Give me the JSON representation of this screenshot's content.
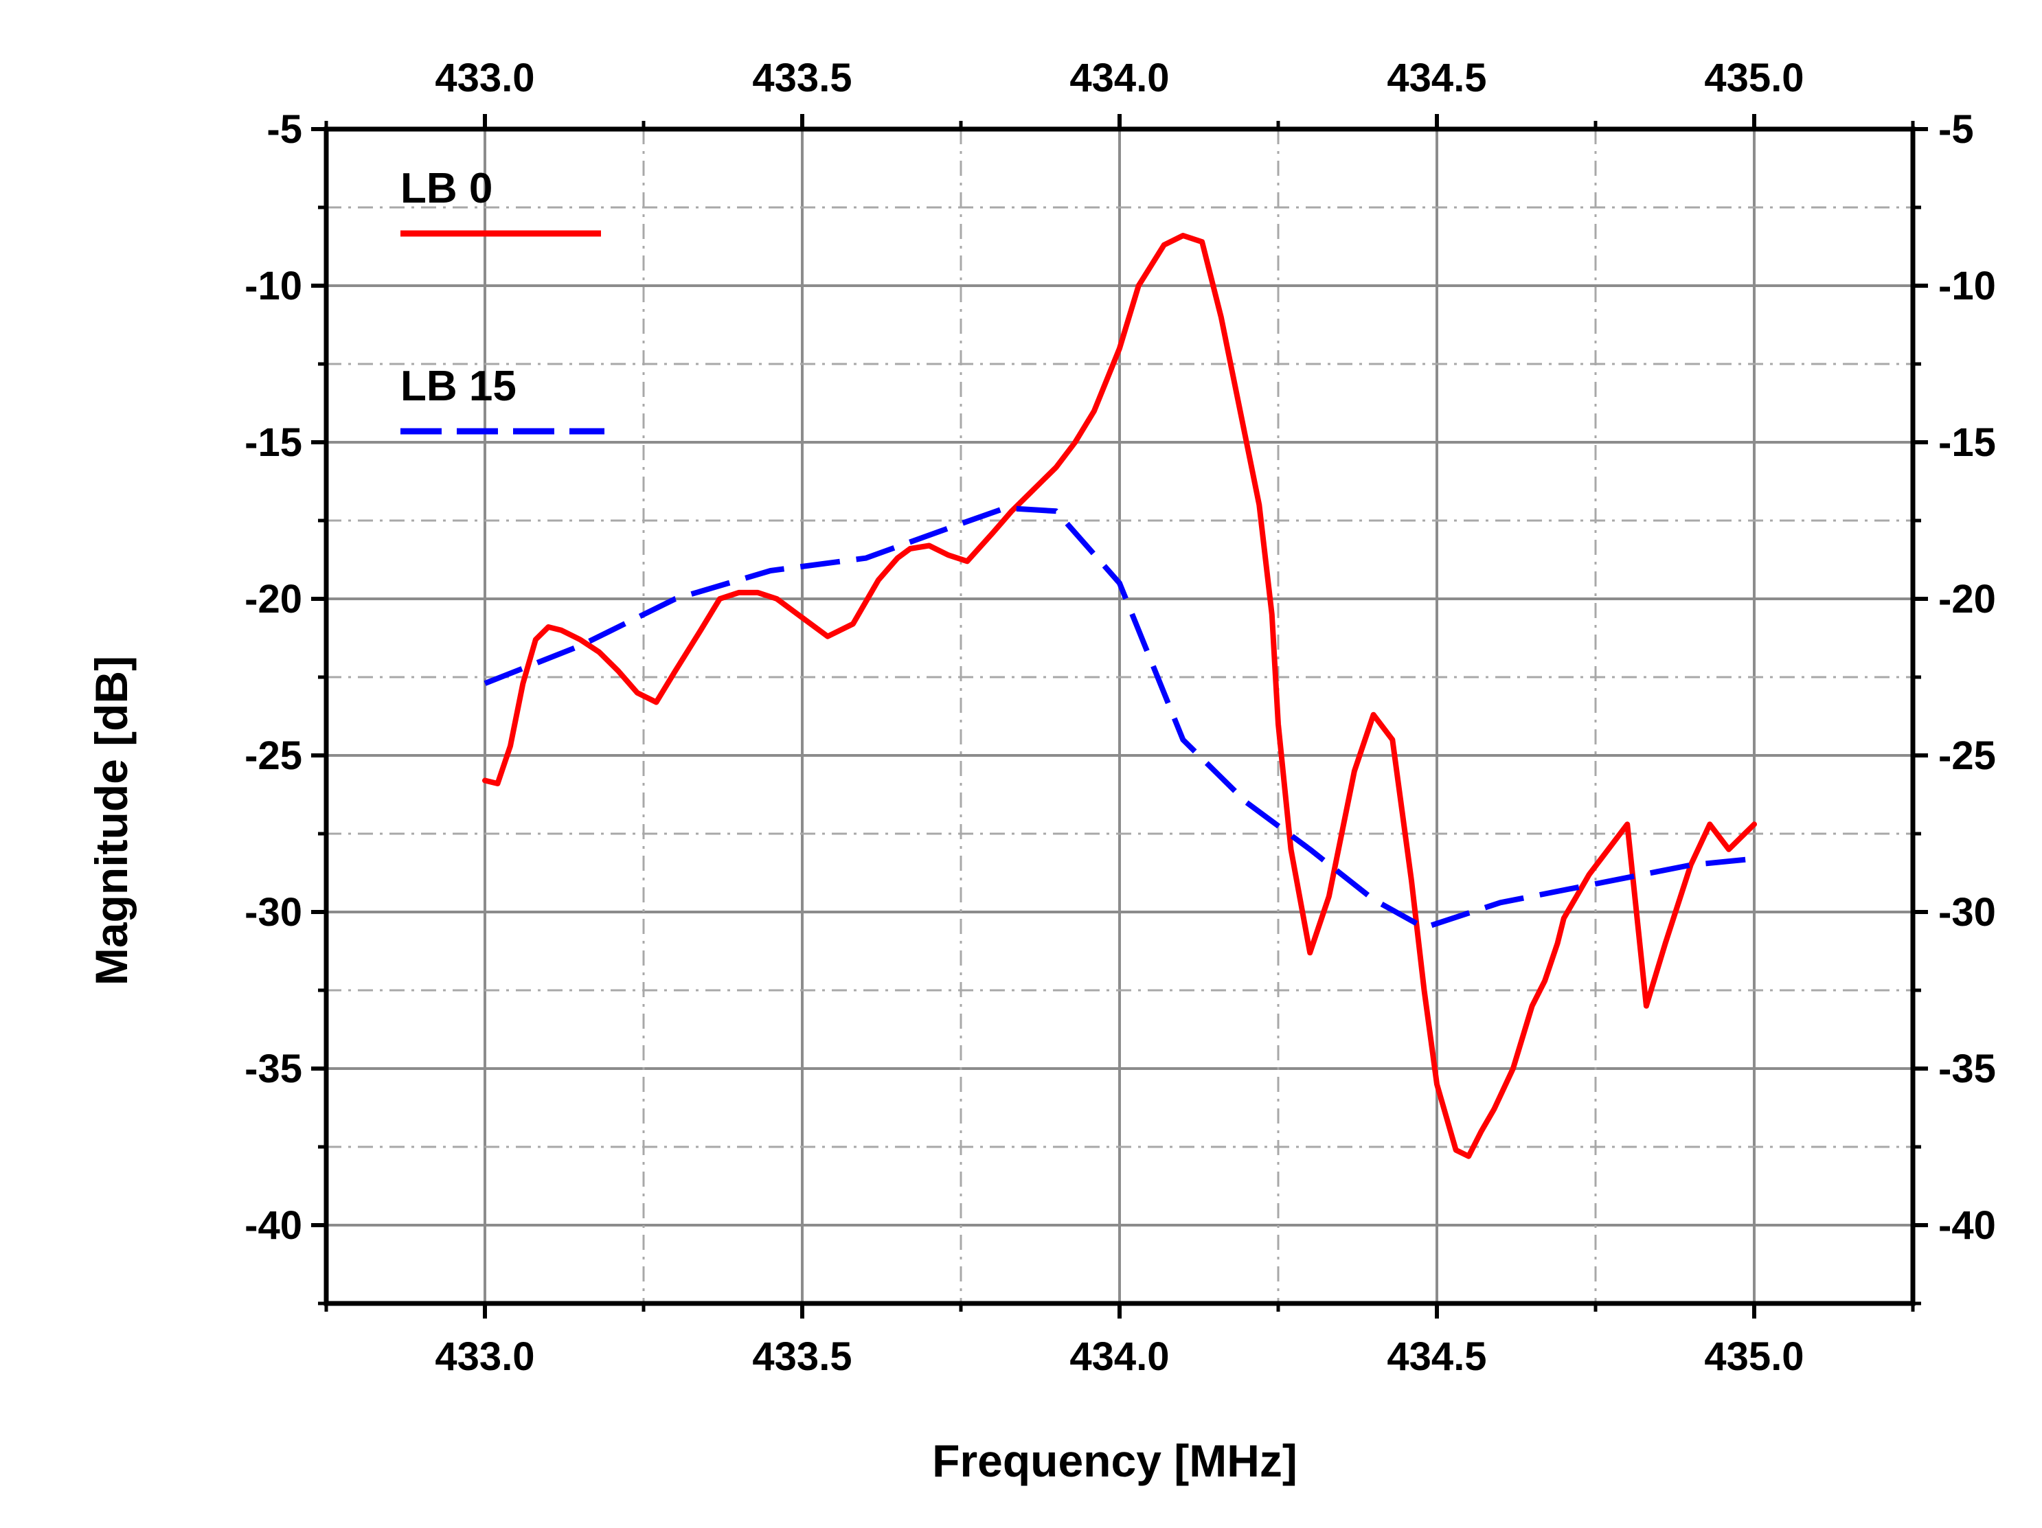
{
  "chart_data": {
    "type": "line",
    "xlabel": "Frequency [MHz]",
    "ylabel": "Magnitude [dB]",
    "xlim": [
      432.75,
      435.25
    ],
    "ylim": [
      -42.5,
      -5
    ],
    "x_ticks": [
      "433.0",
      "433.5",
      "434.0",
      "434.5",
      "435.0"
    ],
    "x_tick_values": [
      433.0,
      433.5,
      434.0,
      434.5,
      435.0
    ],
    "y_ticks": [
      "-5",
      "-10",
      "-15",
      "-20",
      "-25",
      "-30",
      "-35",
      "-40"
    ],
    "y_tick_values": [
      -5,
      -10,
      -15,
      -20,
      -25,
      -30,
      -35,
      -40
    ],
    "y_minor_values": [
      -7.5,
      -12.5,
      -17.5,
      -22.5,
      -27.5,
      -32.5,
      -37.5
    ],
    "x_minor_values": [
      433.25,
      433.75,
      434.25,
      434.75
    ],
    "grid": true,
    "legend_position": "top-left",
    "series": [
      {
        "name": "LB 0",
        "color": "#ff0000",
        "style": "solid",
        "x": [
          433.0,
          433.02,
          433.04,
          433.06,
          433.08,
          433.1,
          433.12,
          433.15,
          433.18,
          433.21,
          433.24,
          433.27,
          433.3,
          433.34,
          433.37,
          433.4,
          433.43,
          433.46,
          433.5,
          433.54,
          433.58,
          433.62,
          433.65,
          433.67,
          433.7,
          433.73,
          433.76,
          433.8,
          433.83,
          433.86,
          433.88,
          433.9,
          433.93,
          433.96,
          434.0,
          434.03,
          434.07,
          434.1,
          434.13,
          434.16,
          434.19,
          434.22,
          434.24,
          434.25,
          434.27,
          434.3,
          434.33,
          434.37,
          434.4,
          434.43,
          434.46,
          434.48,
          434.5,
          434.53,
          434.55,
          434.57,
          434.59,
          434.62,
          434.65,
          434.67,
          434.69,
          434.7,
          434.72,
          434.74,
          434.77,
          434.8,
          434.83,
          434.86,
          434.9,
          434.93,
          434.96,
          435.0
        ],
        "y": [
          -25.8,
          -25.9,
          -24.7,
          -22.7,
          -21.3,
          -20.9,
          -21.0,
          -21.3,
          -21.7,
          -22.3,
          -23.0,
          -23.3,
          -22.3,
          -21.0,
          -20.0,
          -19.8,
          -19.8,
          -20.0,
          -20.6,
          -21.2,
          -20.8,
          -19.4,
          -18.7,
          -18.4,
          -18.3,
          -18.6,
          -18.8,
          -17.9,
          -17.2,
          -16.6,
          -16.2,
          -15.8,
          -15.0,
          -14.0,
          -12.0,
          -10.0,
          -8.7,
          -8.4,
          -8.6,
          -11.0,
          -14.0,
          -17.0,
          -20.5,
          -24.0,
          -28.0,
          -31.3,
          -29.5,
          -25.5,
          -23.7,
          -24.5,
          -29.0,
          -32.5,
          -35.5,
          -37.6,
          -37.8,
          -37.0,
          -36.3,
          -35.0,
          -33.0,
          -32.2,
          -31.0,
          -30.2,
          -29.5,
          -28.8,
          -28.0,
          -27.2,
          -33.0,
          -31.0,
          -28.5,
          -27.2,
          -28.0,
          -27.2
        ],
        "x_fix": true
      },
      {
        "name": "LB 15",
        "color": "#0000ff",
        "style": "dashed",
        "x": [
          433.0,
          433.15,
          433.3,
          433.45,
          433.6,
          433.75,
          433.82,
          433.9,
          434.0,
          434.1,
          434.2,
          434.3,
          434.4,
          434.48,
          434.6,
          434.75,
          434.9,
          435.0
        ],
        "y": [
          -22.7,
          -21.5,
          -20.0,
          -19.1,
          -18.7,
          -17.6,
          -17.1,
          -17.2,
          -19.5,
          -24.5,
          -26.5,
          -28.0,
          -29.6,
          -30.5,
          -29.7,
          -29.1,
          -28.5,
          -28.3
        ]
      }
    ]
  }
}
